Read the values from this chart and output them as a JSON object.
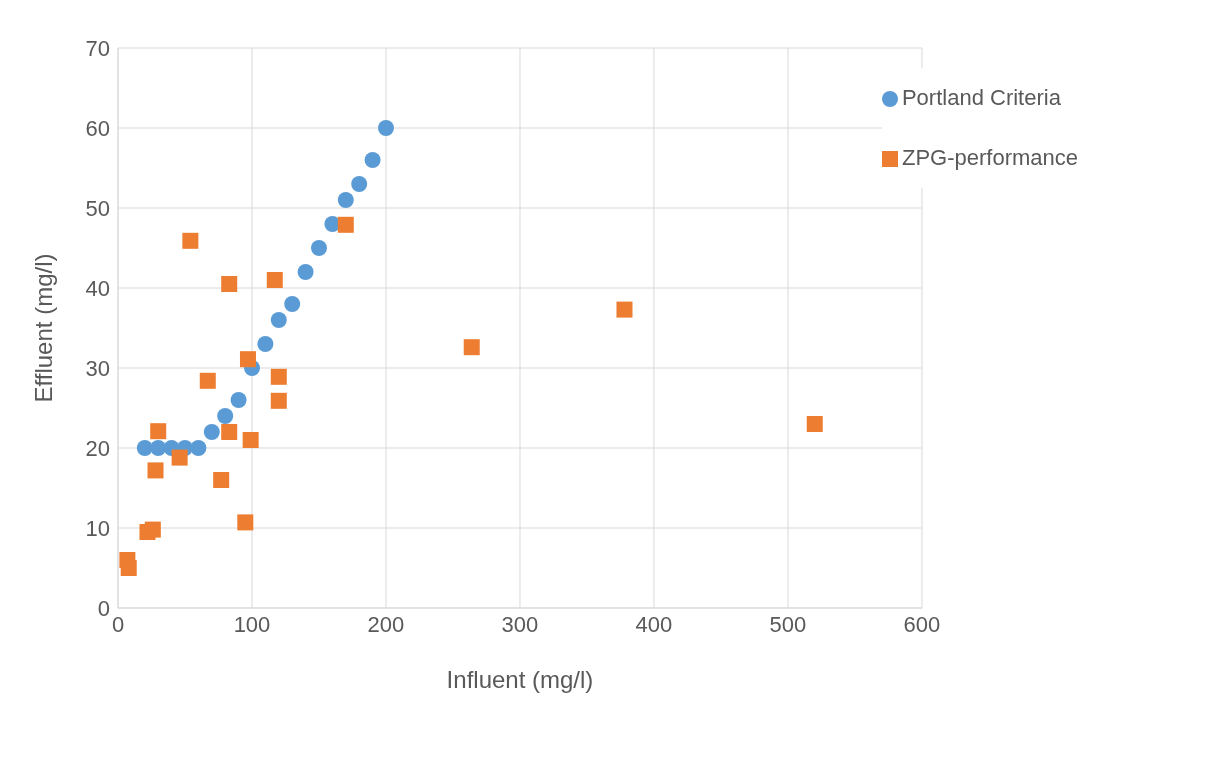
{
  "chart_data": {
    "type": "scatter",
    "xlabel": "Influent (mg/l)",
    "ylabel": "Effluent (mg/l)",
    "xlim": [
      0,
      600
    ],
    "xticks": [
      0,
      100,
      200,
      300,
      400,
      500,
      600
    ],
    "ylim": [
      0,
      70
    ],
    "yticks": [
      0,
      10,
      20,
      30,
      40,
      50,
      60,
      70
    ],
    "grid": true,
    "legend": "top right",
    "series": [
      {
        "name": "Portland Criteria",
        "color": "#5b9bd5",
        "marker": "circle",
        "x": [
          20,
          30,
          40,
          50,
          60,
          70,
          80,
          90,
          100,
          110,
          120,
          130,
          140,
          150,
          160,
          170,
          180,
          190,
          200
        ],
        "values": [
          20,
          20,
          20,
          20,
          20,
          22,
          24,
          26,
          30,
          33,
          36,
          38,
          42,
          45,
          48,
          51,
          53,
          56,
          60
        ]
      },
      {
        "name": "ZPG-performance",
        "color": "#ed7d31",
        "marker": "square",
        "x": [
          7,
          8,
          22,
          26,
          28,
          30,
          46,
          54,
          67,
          77,
          83,
          83,
          95,
          97,
          99,
          117,
          120,
          120,
          170,
          264,
          378,
          520
        ],
        "values": [
          6,
          5,
          9.5,
          9.8,
          17.2,
          22.1,
          18.8,
          45.9,
          28.4,
          16,
          40.5,
          22,
          10.7,
          31.1,
          21,
          41,
          28.9,
          25.9,
          47.9,
          32.6,
          37.3,
          23
        ]
      }
    ]
  }
}
